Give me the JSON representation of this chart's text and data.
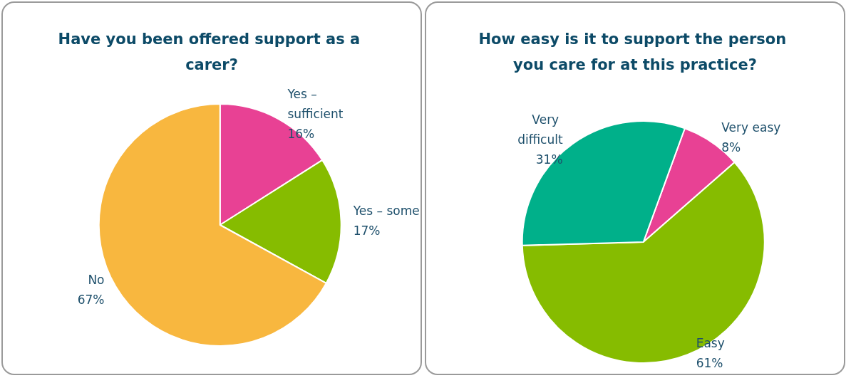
{
  "chart_data": [
    {
      "type": "pie",
      "title": "Have you been offered support as a carer?",
      "categories": [
        "Yes – sufficient",
        "Yes – some",
        "No"
      ],
      "values": [
        16,
        17,
        67
      ],
      "value_labels": [
        "16%",
        "17%",
        "67%"
      ],
      "colors": [
        "#e84194",
        "#86bc00",
        "#f8b73f"
      ],
      "legend": false
    },
    {
      "type": "pie",
      "title": "How easy is it to support the person you care for at this practice?",
      "categories": [
        "Very easy",
        "Easy",
        "Very difficult"
      ],
      "values": [
        8,
        61,
        31
      ],
      "value_labels": [
        "8%",
        "61%",
        "31%"
      ],
      "colors": [
        "#e84194",
        "#86bc00",
        "#00b08a"
      ],
      "legend": false
    }
  ]
}
